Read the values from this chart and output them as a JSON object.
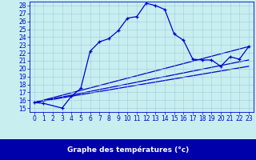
{
  "xlabel": "Graphe des températures (°c)",
  "background_color": "#c8eef0",
  "plot_bg_color": "#c8eef0",
  "line_color": "#0000cc",
  "grid_color": "#99ccdd",
  "xlim": [
    -0.5,
    23.5
  ],
  "ylim": [
    14.5,
    28.5
  ],
  "xticks": [
    0,
    1,
    2,
    3,
    4,
    5,
    6,
    7,
    8,
    9,
    10,
    11,
    12,
    13,
    14,
    15,
    16,
    17,
    18,
    19,
    20,
    21,
    22,
    23
  ],
  "yticks": [
    15,
    16,
    17,
    18,
    19,
    20,
    21,
    22,
    23,
    24,
    25,
    26,
    27,
    28
  ],
  "main_series_x": [
    0,
    1,
    3,
    4,
    5,
    6,
    7,
    8,
    9,
    10,
    11,
    12,
    13,
    14,
    15,
    16,
    17,
    18,
    19,
    20,
    21,
    22,
    23
  ],
  "main_series_y": [
    15.7,
    15.6,
    15.0,
    16.5,
    17.5,
    22.2,
    23.4,
    23.8,
    24.8,
    26.4,
    26.6,
    28.3,
    28.0,
    27.5,
    24.4,
    23.6,
    21.2,
    21.1,
    21.1,
    20.3,
    21.5,
    21.2,
    22.8
  ],
  "line1_x": [
    0,
    23
  ],
  "line1_y": [
    15.7,
    22.8
  ],
  "line2_x": [
    0,
    23
  ],
  "line2_y": [
    15.7,
    21.1
  ],
  "line3_x": [
    0,
    23
  ],
  "line3_y": [
    15.7,
    20.3
  ],
  "xlabel_bg": "#0000aa",
  "xlabel_fg": "#ffffff",
  "xlabel_fontsize": 6.5,
  "tick_fontsize": 5.5,
  "tick_color": "#0000cc"
}
